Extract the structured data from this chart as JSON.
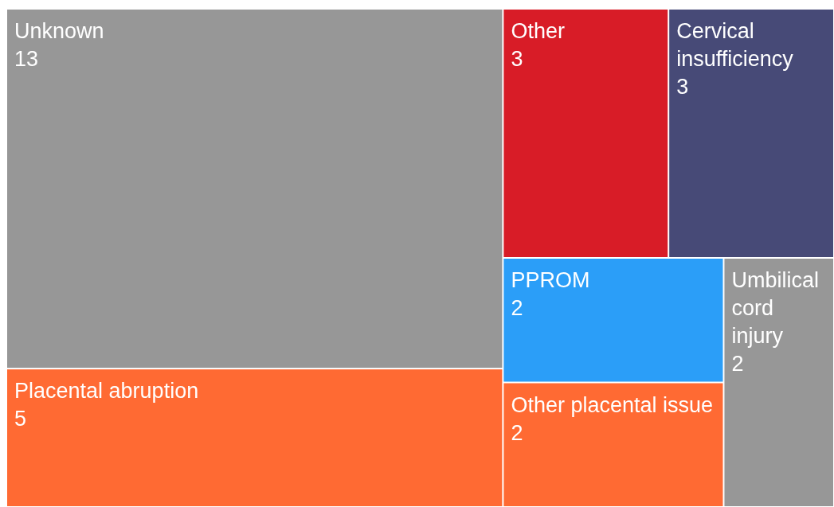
{
  "chart_data": {
    "type": "other",
    "categories": [
      "Unknown",
      "Placental abruption",
      "Other",
      "Cervical insufficiency",
      "PPROM",
      "Other placental issue",
      "Umbilical cord injury"
    ],
    "values": [
      13,
      5,
      3,
      3,
      2,
      2,
      2
    ],
    "colors": [
      "#979797",
      "#ff6a33",
      "#d81c27",
      "#474a77",
      "#2b9ef8",
      "#ff6a33",
      "#979797"
    ],
    "data_labels": true
  }
}
